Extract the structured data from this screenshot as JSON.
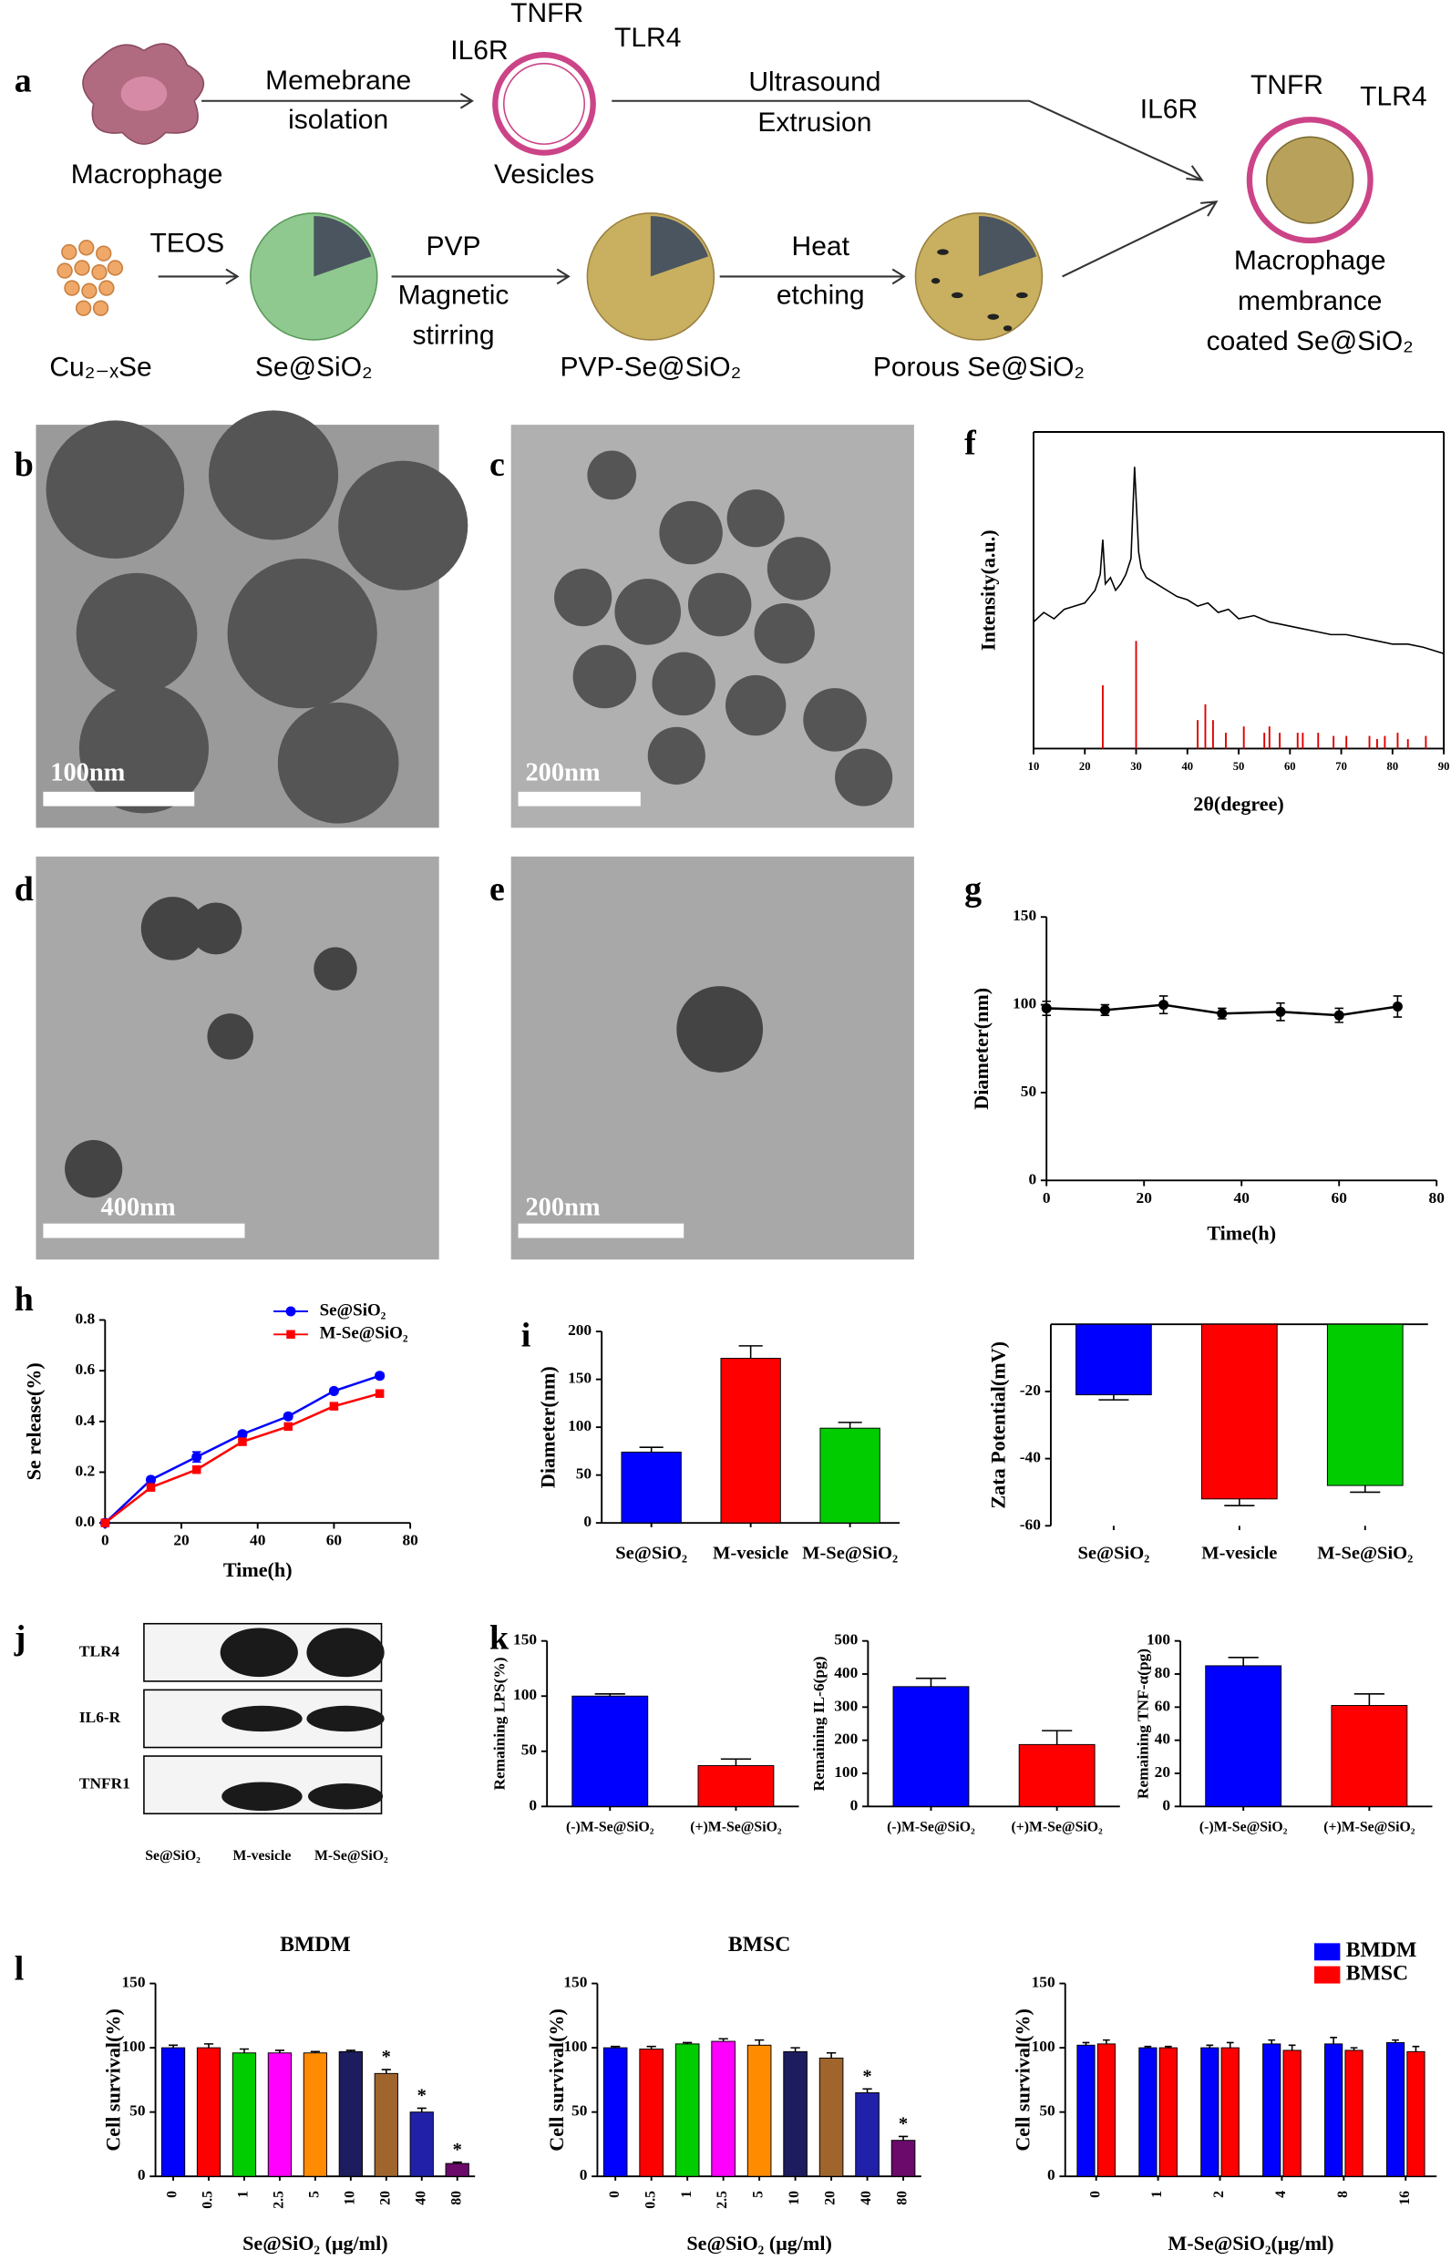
{
  "panel_labels": [
    "a",
    "b",
    "c",
    "d",
    "e",
    "f",
    "g",
    "h",
    "i",
    "j",
    "k",
    "l"
  ],
  "diagram": {
    "labels": [
      "Macrophage",
      "Memebrane",
      "isolation",
      "IL6R",
      "TNFR",
      "TLR4",
      "Vesicles",
      "Ultrasound",
      "Extrusion",
      "IL6R",
      "TNFR",
      "TLR4",
      "Macrophage",
      "membrance",
      "coated Se@SiO₂",
      "Cu₂₋ₓSe",
      "TEOS",
      "Se@SiO₂",
      "PVP",
      "Magnetic",
      "stirring",
      "PVP-Se@SiO₂",
      "Heat",
      "etching",
      "Porous Se@SiO₂"
    ]
  },
  "tem": {
    "scale_bars": [
      "100nm",
      "200nm",
      "400nm",
      "200nm"
    ]
  },
  "blot": {
    "rows": [
      "TLR4",
      "IL6-R",
      "TNFR1"
    ],
    "columns": [
      "Se@SiO₂",
      "M-vesicle",
      "M-Se@SiO₂"
    ]
  },
  "chart_data": [
    {
      "type": "line",
      "xlabel": "2θ(degree)",
      "ylabel": "Intensity(a.u.)",
      "color": "#000000",
      "frame": true,
      "x": [
        10,
        12,
        14,
        16,
        18,
        20,
        21,
        22,
        23,
        23.5,
        24,
        25,
        26,
        27,
        28,
        29,
        29.7,
        30.5,
        31,
        32,
        34,
        36,
        38,
        40,
        42,
        44,
        46,
        48,
        50,
        53,
        56,
        59,
        62,
        65,
        68,
        71,
        74,
        77,
        80,
        83,
        86,
        88,
        90
      ],
      "values": [
        40,
        43,
        41,
        44,
        45,
        46,
        48,
        50,
        55,
        66,
        52,
        54,
        50,
        52,
        55,
        60,
        89,
        62,
        57,
        54,
        52,
        50,
        48,
        47,
        45,
        46,
        43,
        44,
        41,
        42,
        40,
        39,
        38,
        37,
        36,
        36,
        35,
        34,
        33,
        33,
        32,
        31,
        30
      ],
      "reference_peaks": {
        "color": "#e00000",
        "x": [
          23.5,
          30,
          42,
          43.5,
          45,
          47.5,
          51,
          55,
          56,
          58,
          61.5,
          62.5,
          65.5,
          68.5,
          71,
          75.5,
          77,
          78.5,
          81,
          83,
          86.5
        ],
        "values": [
          20,
          34,
          9,
          14,
          9,
          5,
          7,
          5,
          7,
          5,
          5,
          5,
          5,
          4,
          4,
          4,
          3,
          4,
          5,
          3,
          4
        ]
      },
      "xlim": [
        10,
        90
      ],
      "xticks": [
        10,
        20,
        30,
        40,
        50,
        60,
        70,
        80,
        90
      ],
      "ylim": [
        0,
        100
      ]
    },
    {
      "type": "line",
      "xlabel": "Time(h)",
      "ylabel": "Diameter(nm)",
      "color": "#000000",
      "markers": true,
      "x": [
        0,
        12,
        24,
        36,
        48,
        60,
        72
      ],
      "values": [
        98,
        97,
        100,
        95,
        96,
        94,
        99
      ],
      "errors": [
        4,
        3,
        5,
        3,
        5,
        4,
        6
      ],
      "xlim": [
        0,
        80
      ],
      "xticks": [
        0,
        20,
        40,
        60,
        80
      ],
      "ylim": [
        0,
        150
      ],
      "yticks": [
        0,
        50,
        100,
        150
      ]
    },
    {
      "type": "line",
      "xlabel": "Time(h)",
      "ylabel": "Se release(%)",
      "markers": true,
      "legend": "upper right",
      "x": [
        0,
        12,
        24,
        36,
        48,
        60,
        72
      ],
      "series": [
        {
          "name": "Se@SiO₂",
          "color": "#0000ff",
          "values": [
            0,
            0.17,
            0.26,
            0.35,
            0.42,
            0.52,
            0.58
          ],
          "errors": [
            0,
            0.01,
            0.02,
            0.01,
            0.01,
            0.01,
            0.01
          ]
        },
        {
          "name": "M-Se@SiO₂",
          "color": "#ff0000",
          "values": [
            0,
            0.14,
            0.21,
            0.32,
            0.38,
            0.46,
            0.51
          ],
          "errors": [
            0,
            0.01,
            0.01,
            0.01,
            0.01,
            0.01,
            0.01
          ]
        }
      ],
      "xlim": [
        0,
        80
      ],
      "xticks": [
        0,
        20,
        40,
        60,
        80
      ],
      "ylim": [
        0,
        0.8
      ],
      "yticks": [
        {
          "value": 0,
          "label": "0.0"
        },
        0.2,
        0.4,
        0.6,
        0.8
      ]
    },
    {
      "type": "bar",
      "ylabel": "Diameter(nm)",
      "categories": [
        "Se@SiO₂",
        "M-vesicle",
        "M-Se@SiO₂"
      ],
      "values": [
        74,
        172,
        99
      ],
      "errors": [
        5,
        13,
        6
      ],
      "colors": [
        "#0000ff",
        "#ff0000",
        "#00cc00"
      ],
      "ylim": [
        0,
        200
      ],
      "yticks": [
        0,
        50,
        100,
        150,
        200
      ]
    },
    {
      "type": "bar",
      "ylabel": "Zata Potential(mV)",
      "categories": [
        "Se@SiO₂",
        "M-vesicle",
        "M-Se@SiO₂"
      ],
      "values": [
        -21,
        -52,
        -48
      ],
      "errors": [
        1.5,
        2,
        2
      ],
      "colors": [
        "#0000ff",
        "#ff0000",
        "#00cc00"
      ],
      "ylim": [
        -60,
        0
      ],
      "yticks": [
        -60,
        -40,
        -20
      ]
    },
    {
      "type": "bar",
      "ylabel": "Remaining LPS(%)",
      "categories": [
        "(-)M-Se@SiO₂",
        "(+)M-Se@SiO₂"
      ],
      "values": [
        100,
        37
      ],
      "errors": [
        2,
        6
      ],
      "colors": [
        "#0000ff",
        "#ff0000"
      ],
      "ylim": [
        0,
        150
      ],
      "yticks": [
        0,
        50,
        100,
        150
      ]
    },
    {
      "type": "bar",
      "ylabel": "Remaining IL-6(pg)",
      "categories": [
        "(-)M-Se@SiO₂",
        "(+)M-Se@SiO₂"
      ],
      "values": [
        362,
        187
      ],
      "errors": [
        25,
        42
      ],
      "colors": [
        "#0000ff",
        "#ff0000"
      ],
      "ylim": [
        0,
        500
      ],
      "yticks": [
        0,
        100,
        200,
        300,
        400,
        500
      ]
    },
    {
      "type": "bar",
      "ylabel": "Remaining TNF-α(pg)",
      "categories": [
        "(-)M-Se@SiO₂",
        "(+)M-Se@SiO₂"
      ],
      "values": [
        85,
        61
      ],
      "errors": [
        5,
        7
      ],
      "colors": [
        "#0000ff",
        "#ff0000"
      ],
      "ylim": [
        0,
        100
      ],
      "yticks": [
        0,
        20,
        40,
        60,
        80,
        100
      ]
    },
    {
      "type": "bar",
      "title": "BMDM",
      "xlabel": "Se@SiO₂ (μg/ml)",
      "ylabel": "Cell survival(%)",
      "categories": [
        "0",
        "0.5",
        "1",
        "2.5",
        "5",
        "10",
        "20",
        "40",
        "80"
      ],
      "values": [
        100,
        100,
        96,
        96,
        96,
        97,
        80,
        50,
        10
      ],
      "errors": [
        2,
        3,
        3,
        2,
        1,
        1,
        3,
        3,
        1
      ],
      "significance": [
        null,
        null,
        null,
        null,
        null,
        null,
        "*",
        "*",
        "*"
      ],
      "colors": [
        "#0000ff",
        "#ff0000",
        "#00cc00",
        "#ff00ff",
        "#ff8c00",
        "#1c1c5e",
        "#a0642d",
        "#2020a8",
        "#6b0a6b"
      ],
      "ylim": [
        0,
        150
      ],
      "yticks": [
        0,
        50,
        100,
        150
      ]
    },
    {
      "type": "bar",
      "title": "BMSC",
      "xlabel": "Se@SiO₂ (μg/ml)",
      "ylabel": "Cell survival(%)",
      "categories": [
        "0",
        "0.5",
        "1",
        "2.5",
        "5",
        "10",
        "20",
        "40",
        "80"
      ],
      "values": [
        100,
        99,
        103,
        105,
        102,
        97,
        92,
        65,
        28
      ],
      "errors": [
        1,
        2,
        1,
        2,
        4,
        3,
        4,
        3,
        3
      ],
      "significance": [
        null,
        null,
        null,
        null,
        null,
        null,
        null,
        "*",
        "*"
      ],
      "colors": [
        "#0000ff",
        "#ff0000",
        "#00cc00",
        "#ff00ff",
        "#ff8c00",
        "#1c1c5e",
        "#a0642d",
        "#2020a8",
        "#6b0a6b"
      ],
      "ylim": [
        0,
        150
      ],
      "yticks": [
        0,
        50,
        100,
        150
      ]
    },
    {
      "type": "bar",
      "xlabel": "M-Se@SiO₂(μg/ml)",
      "ylabel": "Cell survival(%)",
      "legend": "upper right",
      "categories": [
        "0",
        "1",
        "2",
        "4",
        "8",
        "16"
      ],
      "series": [
        {
          "name": "BMDM",
          "color": "#0000ff",
          "values": [
            102,
            100,
            100,
            103,
            103,
            104
          ],
          "errors": [
            2,
            1,
            2,
            3,
            5,
            2
          ]
        },
        {
          "name": "BMSC",
          "color": "#ff0000",
          "values": [
            103,
            100,
            100,
            98,
            98,
            97
          ],
          "errors": [
            3,
            1,
            4,
            4,
            2,
            4
          ]
        }
      ],
      "ylim": [
        0,
        150
      ],
      "yticks": [
        0,
        50,
        100,
        150
      ]
    }
  ]
}
